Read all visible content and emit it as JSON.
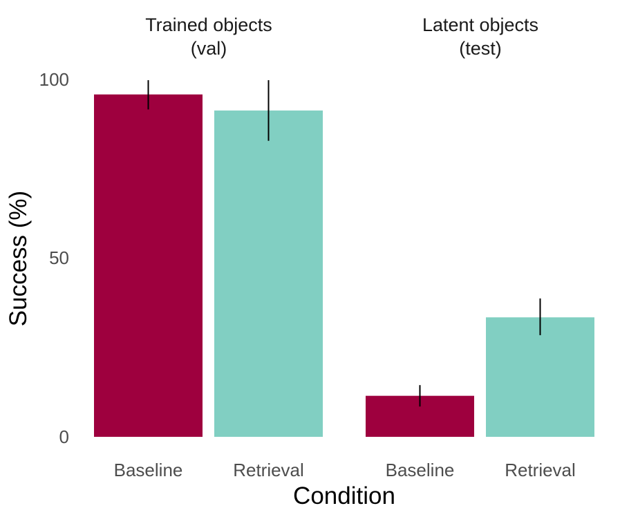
{
  "chart_data": {
    "type": "bar",
    "xlabel": "Condition",
    "ylabel": "Success (%)",
    "ylim": [
      0,
      100
    ],
    "yticks": [
      "0",
      "50",
      "100"
    ],
    "grid": false,
    "legend": "none",
    "colors": {
      "Baseline": "#9e003e",
      "Retrieval": "#81cfc2"
    },
    "facets": [
      {
        "title_line1": "Trained objects",
        "title_line2": "(val)",
        "categories": [
          "Baseline",
          "Retrieval"
        ],
        "values": [
          96,
          91.5
        ],
        "error_low": [
          91.8,
          83
        ],
        "error_high": [
          100,
          100
        ]
      },
      {
        "title_line1": "Latent objects",
        "title_line2": "(test)",
        "categories": [
          "Baseline",
          "Retrieval"
        ],
        "values": [
          11.5,
          33.5
        ],
        "error_low": [
          8.5,
          28.5
        ],
        "error_high": [
          14.5,
          38.8
        ]
      }
    ]
  }
}
